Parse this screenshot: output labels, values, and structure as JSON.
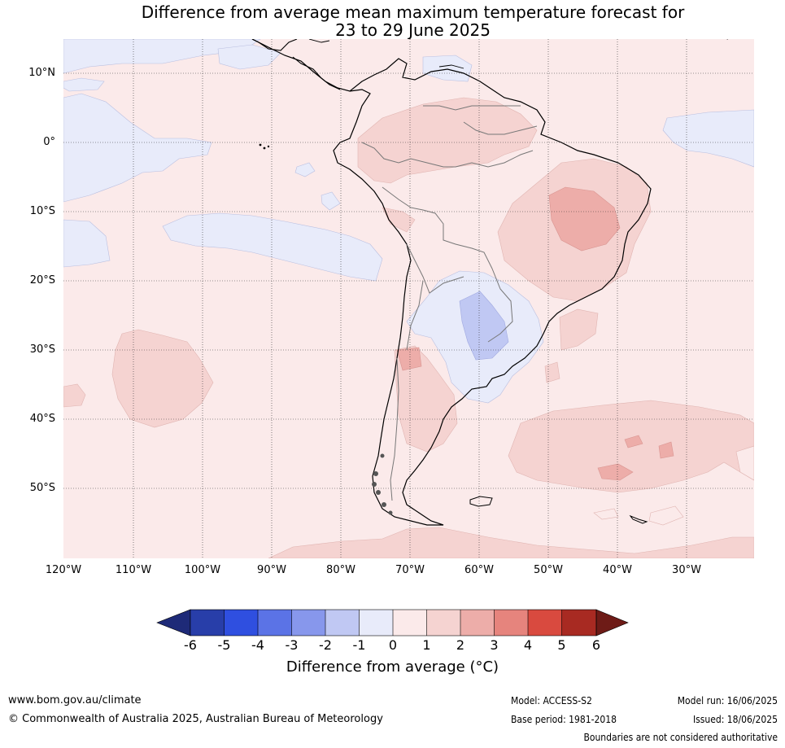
{
  "title": {
    "line1": "Difference from average mean maximum temperature forecast for",
    "line2": "23 to 29 June 2025"
  },
  "map": {
    "lat_labels": [
      "10°N",
      "0°",
      "10°S",
      "20°S",
      "30°S",
      "40°S",
      "50°S"
    ],
    "lon_labels": [
      "120°W",
      "110°W",
      "100°W",
      "90°W",
      "80°W",
      "70°W",
      "60°W",
      "50°W",
      "40°W",
      "30°W"
    ],
    "region": "South America and surrounding oceans"
  },
  "colorbar": {
    "ticks": [
      "-6",
      "-5",
      "-4",
      "-3",
      "-2",
      "-1",
      "0",
      "1",
      "2",
      "3",
      "4",
      "5",
      "6"
    ],
    "colors": [
      "#283ea9",
      "#2f4fe0",
      "#5b73e6",
      "#8797ec",
      "#c0c8f3",
      "#e8ebfa",
      "#fbeaea",
      "#f5d3d1",
      "#edada9",
      "#e6847d",
      "#d94a3f",
      "#a82a22"
    ],
    "low_extend_color": "#1e2a78",
    "high_extend_color": "#6e1b17",
    "title": "Difference from average (°C)"
  },
  "footer": {
    "website": "www.bom.gov.au/climate",
    "copyright": "© Commonwealth of Australia 2025, Australian Bureau of Meteorology",
    "model": "Model: ACCESS-S2",
    "base_period": "Base period: 1981-2018",
    "model_run": "Model run: 16/06/2025",
    "issued": "Issued: 18/06/2025",
    "disclaimer": "Boundaries are not considered authoritative"
  }
}
